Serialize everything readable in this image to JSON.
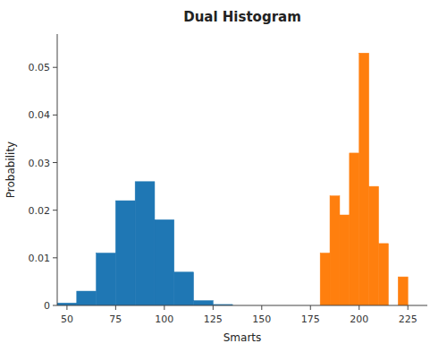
{
  "chart_data": {
    "type": "histogram",
    "title": "Dual Histogram",
    "xlabel": "Smarts",
    "ylabel": "Probability",
    "series": [
      {
        "color": "#1f77b4",
        "bins": [
          45,
          55,
          65,
          75,
          85,
          95,
          105,
          115,
          125,
          135,
          145,
          155
        ],
        "values": [
          0.0005,
          0.003,
          0.011,
          0.022,
          0.026,
          0.018,
          0.007,
          0.001,
          0.0002,
          0.0,
          0.0
        ]
      },
      {
        "color": "#ff7f0e",
        "bins": [
          175,
          180,
          185,
          190,
          195,
          200,
          205,
          210,
          215,
          220,
          225,
          230
        ],
        "values": [
          0.0,
          0.011,
          0.023,
          0.019,
          0.032,
          0.053,
          0.025,
          0.013,
          0.0,
          0.006,
          0.0
        ]
      }
    ],
    "xlim": [
      45,
      235
    ],
    "xticks": [
      50,
      75,
      100,
      125,
      150,
      175,
      200,
      225
    ],
    "ylim": [
      0.0,
      0.057
    ],
    "yticks": [
      0,
      0.01,
      0.02,
      0.03,
      0.04,
      0.05
    ],
    "grid": false
  }
}
